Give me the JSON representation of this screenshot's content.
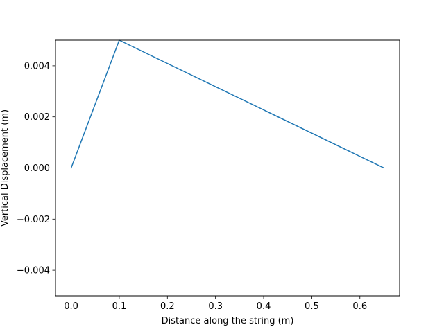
{
  "chart_data": {
    "type": "line",
    "title": "",
    "xlabel": "Distance along the string (m)",
    "ylabel": "Vertical Displacement (m)",
    "xlim": [
      -0.0325,
      0.6825
    ],
    "ylim": [
      -0.005,
      0.005
    ],
    "grid": false,
    "series": [
      {
        "color": "#1f77b4",
        "x": [
          0.0,
          0.1,
          0.65
        ],
        "y": [
          0.0,
          0.005,
          0.0
        ]
      }
    ],
    "xticks": [
      {
        "value": 0.0,
        "label": "0.0"
      },
      {
        "value": 0.1,
        "label": "0.1"
      },
      {
        "value": 0.2,
        "label": "0.2"
      },
      {
        "value": 0.3,
        "label": "0.3"
      },
      {
        "value": 0.4,
        "label": "0.4"
      },
      {
        "value": 0.5,
        "label": "0.5"
      },
      {
        "value": 0.6,
        "label": "0.6"
      }
    ],
    "yticks": [
      {
        "value": -0.004,
        "label": "−0.004"
      },
      {
        "value": -0.002,
        "label": "−0.002"
      },
      {
        "value": 0.0,
        "label": "0.000"
      },
      {
        "value": 0.002,
        "label": "0.002"
      },
      {
        "value": 0.004,
        "label": "0.004"
      }
    ]
  }
}
